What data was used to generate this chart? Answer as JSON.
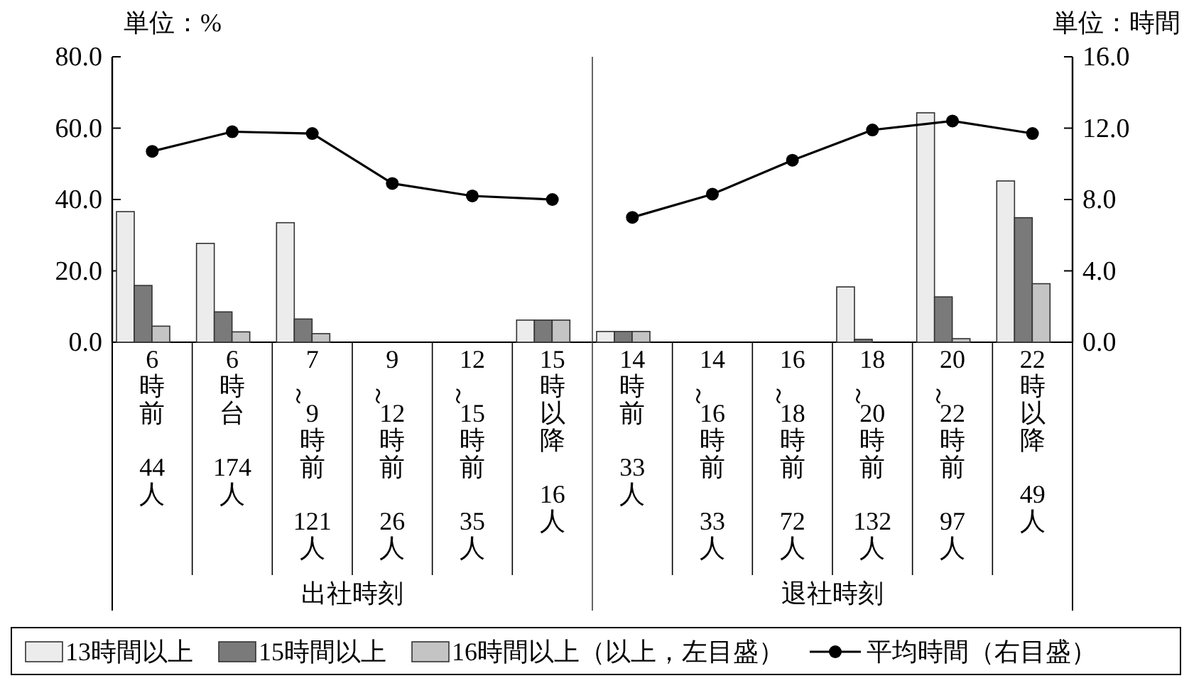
{
  "chart_data": [
    {
      "type": "bar",
      "xlabel": "出社時刻",
      "ylabel": "単位：%",
      "categories": [
        "6時前\n44人",
        "6時台\n174人",
        "7～9時前\n121人",
        "9～12時前\n26人",
        "12～15時前\n35人",
        "15時以降\n16人"
      ],
      "series": [
        {
          "name": "13時間以上",
          "color": "#ececec",
          "values": [
            36.6,
            27.7,
            33.5,
            0,
            0,
            6.2
          ]
        },
        {
          "name": "15時間以上",
          "color": "#7a7a7a",
          "values": [
            15.9,
            8.5,
            6.5,
            0,
            0,
            6.2
          ]
        },
        {
          "name": "16時間以上（以上，左目盛）",
          "color": "#c4c4c4",
          "values": [
            4.5,
            2.9,
            2.4,
            0,
            0,
            6.2
          ]
        },
        {
          "name": "平均時間（右目盛）",
          "type": "line",
          "axis": "y2",
          "color": "#000000",
          "values": [
            10.7,
            11.8,
            11.7,
            8.9,
            8.2,
            8.0
          ]
        }
      ],
      "ylim": [
        0,
        80
      ],
      "yticks": [
        {
          "value": 0,
          "label": "0.0"
        },
        {
          "value": 20,
          "label": "20.0"
        },
        {
          "value": 40,
          "label": "40.0"
        },
        {
          "value": 60,
          "label": "60.0"
        },
        {
          "value": 80,
          "label": "80.0"
        }
      ],
      "y2lim": [
        0,
        16
      ],
      "legend": "bottom",
      "marker": "circle",
      "line_style": "solid"
    },
    {
      "type": "bar",
      "xlabel": "退社時刻",
      "y2label": "単位：時間",
      "categories": [
        "14時前\n33人",
        "14～16時前\n33人",
        "16～18時前\n72人",
        "18～20時前\n132人",
        "20～22時前\n97人",
        "22時以降\n49人"
      ],
      "series": [
        {
          "color": "#ececec",
          "values": [
            3.0,
            0,
            0,
            15.5,
            64.3,
            45.2
          ]
        },
        {
          "color": "#7a7a7a",
          "values": [
            3.0,
            0,
            0,
            0.8,
            12.7,
            34.9
          ]
        },
        {
          "color": "#c4c4c4",
          "values": [
            3.0,
            0,
            0,
            0,
            1.0,
            16.4
          ]
        },
        {
          "type": "line",
          "axis": "y2",
          "color": "#000000",
          "values": [
            7.0,
            8.3,
            10.2,
            11.9,
            12.4,
            11.7
          ]
        }
      ],
      "ylim": [
        0,
        80
      ],
      "y2lim": [
        0,
        16
      ],
      "y2ticks": [
        {
          "value": 0,
          "label": "0.0"
        },
        {
          "value": 4,
          "label": "4.0"
        },
        {
          "value": 8,
          "label": "8.0"
        },
        {
          "value": 12,
          "label": "12.0"
        },
        {
          "value": 16,
          "label": "16.0"
        }
      ],
      "marker": "circle",
      "line_style": "solid"
    }
  ]
}
